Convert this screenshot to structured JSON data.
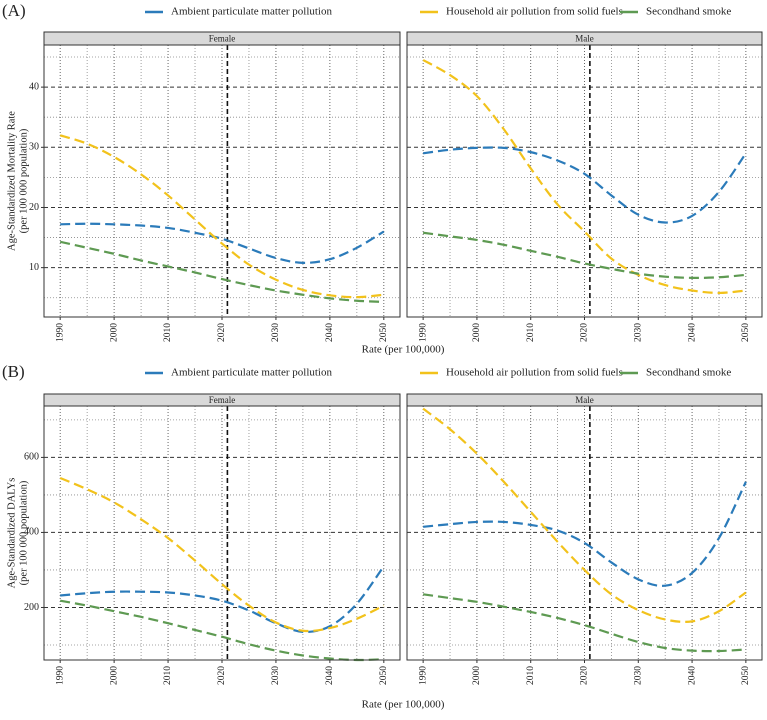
{
  "chart_data": [
    {
      "type": "line",
      "label": "(A)",
      "ylabel": [
        "Age-Standardized Mortality Rate",
        "(per 100 000 population)"
      ],
      "xlabel": "Rate (per 100,000)",
      "series": [
        {
          "name": "Ambient particulate matter pollution",
          "color": "#2b7bba"
        },
        {
          "name": "Household air pollution from solid fuels",
          "color": "#f2c21b"
        },
        {
          "name": "Secondhand smoke",
          "color": "#5e9a52"
        }
      ],
      "x": [
        1990,
        1995,
        2000,
        2005,
        2010,
        2015,
        2020,
        2025,
        2030,
        2035,
        2040,
        2045,
        2050
      ],
      "xlim": [
        1987,
        2053
      ],
      "xticks": [
        1990,
        2000,
        2010,
        2020,
        2030,
        2040,
        2050
      ],
      "ylim": [
        1.8,
        47
      ],
      "yticks": [
        10,
        20,
        30,
        40
      ],
      "vline": 2021,
      "panels": [
        {
          "title": "Female",
          "values": [
            [
              17.2,
              17.3,
              17.2,
              17,
              16.6,
              15.8,
              14.8,
              13.2,
              11.6,
              10.8,
              11.4,
              13.3,
              16
            ],
            [
              32,
              30.6,
              28.4,
              25.5,
              22,
              18,
              14,
              10.5,
              8,
              6.3,
              5.4,
              5.1,
              5.5
            ],
            [
              14.3,
              13.3,
              12.3,
              11.2,
              10.2,
              9.2,
              8.1,
              7.1,
              6.2,
              5.5,
              4.9,
              4.5,
              4.3
            ]
          ]
        },
        {
          "title": "Male",
          "values": [
            [
              29,
              29.6,
              29.9,
              29.9,
              29.2,
              27.8,
              25.6,
              22,
              18.8,
              17.5,
              18.6,
              22.6,
              29
            ],
            [
              44.5,
              42,
              38.5,
              33,
              26.5,
              20.5,
              16,
              11.5,
              8.8,
              7.1,
              6.2,
              5.8,
              6.2
            ],
            [
              15.8,
              15.2,
              14.6,
              13.8,
              12.8,
              11.8,
              10.7,
              9.8,
              9,
              8.5,
              8.3,
              8.4,
              8.8
            ]
          ]
        }
      ]
    },
    {
      "type": "line",
      "label": "(B)",
      "ylabel": [
        "Age-Standardized DALYs",
        "(per 100 000 population)"
      ],
      "xlabel": "Rate (per 100,000)",
      "series": [
        {
          "name": "Ambient particulate matter pollution",
          "color": "#2b7bba"
        },
        {
          "name": "Household air pollution from solid fuels",
          "color": "#f2c21b"
        },
        {
          "name": "Secondhand smoke",
          "color": "#5e9a52"
        }
      ],
      "x": [
        1990,
        1995,
        2000,
        2005,
        2010,
        2015,
        2020,
        2025,
        2030,
        2035,
        2040,
        2045,
        2050
      ],
      "xlim": [
        1987,
        2053
      ],
      "xticks": [
        1990,
        2000,
        2010,
        2020,
        2030,
        2040,
        2050
      ],
      "ylim": [
        60,
        737
      ],
      "yticks": [
        200,
        400,
        600
      ],
      "vline": 2021,
      "panels": [
        {
          "title": "Female",
          "values": [
            [
              232,
              238,
              242,
              242,
              240,
              232,
              218,
              192,
              158,
              135,
              150,
              210,
              310
            ],
            [
              545,
              515,
              480,
              435,
              385,
              325,
              262,
              205,
              160,
              138,
              145,
              170,
              205
            ],
            [
              218,
              205,
              190,
              175,
              158,
              140,
              122,
              102,
              85,
              72,
              64,
              60,
              62
            ]
          ]
        },
        {
          "title": "Male",
          "values": [
            [
              415,
              422,
              428,
              428,
              420,
              405,
              372,
              320,
              275,
              258,
              292,
              385,
              535
            ],
            [
              730,
              675,
              610,
              535,
              455,
              375,
              300,
              235,
              193,
              168,
              163,
              190,
              240
            ],
            [
              235,
              225,
              215,
              202,
              188,
              172,
              153,
              130,
              108,
              92,
              85,
              84,
              88
            ]
          ]
        }
      ]
    }
  ]
}
